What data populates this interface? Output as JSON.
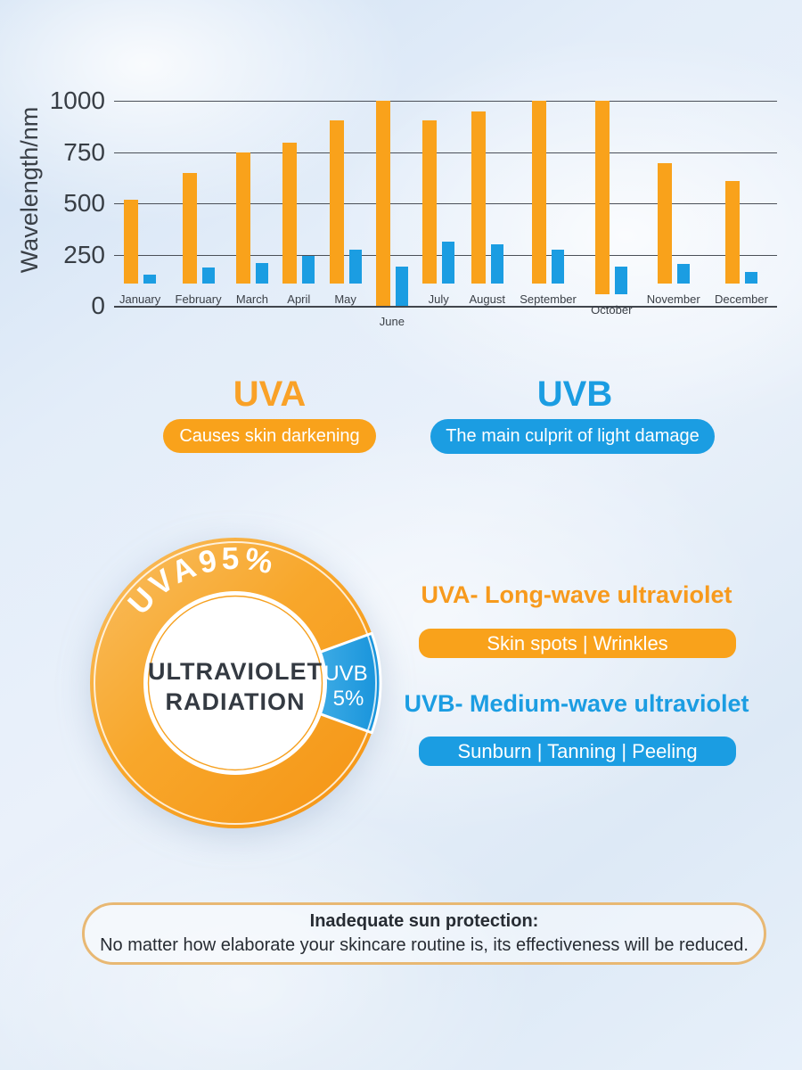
{
  "chart_data": [
    {
      "type": "bar",
      "categories": [
        "January",
        "February",
        "March",
        "April",
        "May",
        "June",
        "July",
        "August",
        "September",
        "October",
        "November",
        "December"
      ],
      "series": [
        {
          "name": "UVA",
          "color": "#F9A21B",
          "values": [
            410,
            540,
            640,
            685,
            795,
            1000,
            795,
            840,
            890,
            945,
            585,
            500
          ]
        },
        {
          "name": "UVB",
          "color": "#1B9DE2",
          "values": [
            45,
            80,
            100,
            135,
            165,
            190,
            205,
            190,
            165,
            135,
            95,
            55
          ]
        }
      ],
      "title": "",
      "xlabel": "",
      "ylabel": "Wavelength/nm",
      "ylim": [
        0,
        1000
      ],
      "yticks": [
        0,
        250,
        500,
        750,
        1000
      ],
      "grid": true,
      "legend_position": "none"
    },
    {
      "type": "pie",
      "title": "ULTRAVIOLET RADIATION",
      "labels": [
        "UVA",
        "UVB"
      ],
      "values": [
        95,
        5
      ],
      "colors": [
        "#F9A21B",
        "#1B9DE2"
      ]
    }
  ],
  "legend": {
    "uva": {
      "title": "UVA",
      "badge": "Causes skin darkening",
      "color": "#F9A21B"
    },
    "uvb": {
      "title": "UVB",
      "badge": "The main culprit of light damage",
      "color": "#1B9DE2"
    }
  },
  "donut": {
    "uva_label": "UVA95%",
    "uvb_line1": "UVB",
    "uvb_line2": "5%",
    "center_line1": "ULTRAVIOLET",
    "center_line2": "RADIATION"
  },
  "details": {
    "uva_heading": "UVA- Long-wave ultraviolet",
    "uva_badge": "Skin spots | Wrinkles",
    "uvb_heading": "UVB- Medium-wave ultraviolet",
    "uvb_badge": "Sunburn | Tanning | Peeling"
  },
  "footer": {
    "line1": "Inadequate sun protection:",
    "line2": "No matter how elaborate your skincare routine is, its effectiveness will be reduced."
  },
  "colors": {
    "uva_orange": "#F9A21B",
    "uvb_blue": "#1B9DE2",
    "grid_line": "#4B5058",
    "dark_text": "#343A42",
    "footer_border": "#E8B873"
  }
}
